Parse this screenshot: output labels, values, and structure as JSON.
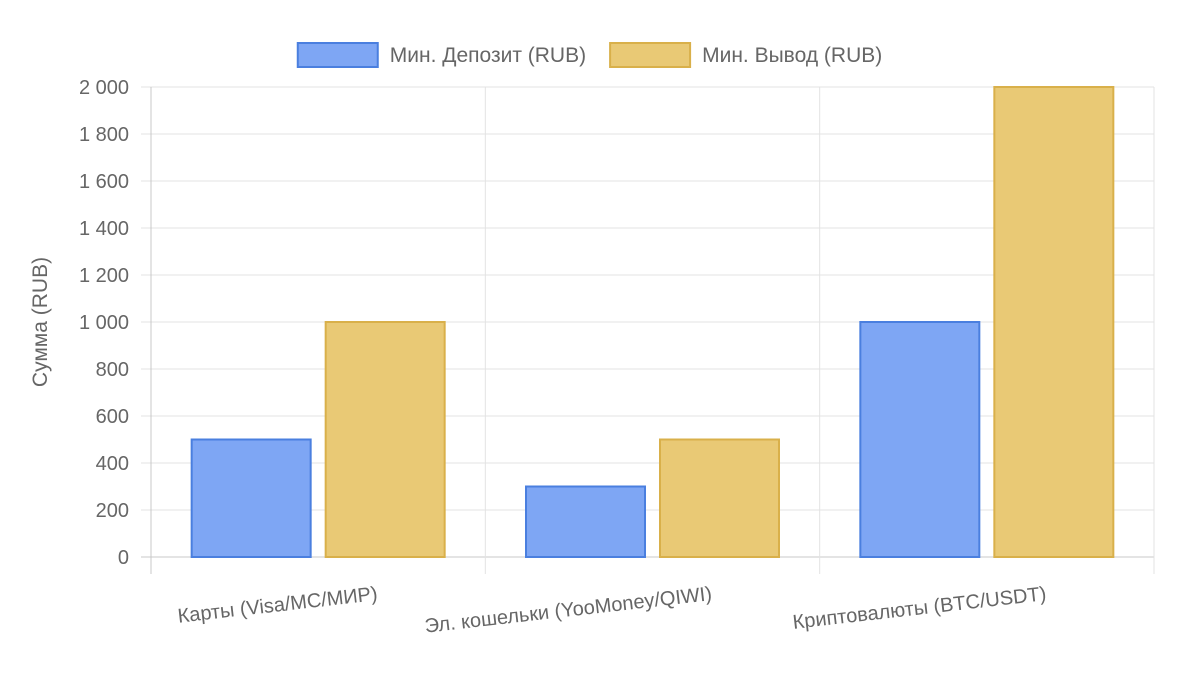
{
  "chart_data": {
    "type": "bar",
    "categories": [
      "Карты (Visa/MC/МИР)",
      "Эл. кошельки (YooMoney/QIWI)",
      "Криптовалюты (BTC/USDT)"
    ],
    "series": [
      {
        "name": "Мин. Депозит (RUB)",
        "values": [
          500,
          300,
          1000
        ],
        "fill": "#7ea6f4",
        "stroke": "#4a7fdf"
      },
      {
        "name": "Мин. Вывод (RUB)",
        "values": [
          1000,
          500,
          2000
        ],
        "fill": "#e9c975",
        "stroke": "#d9b04a"
      }
    ],
    "yticks": [
      "2 000",
      "1 800",
      "1 600",
      "1 400",
      "1 200",
      "1 000",
      "800",
      "600",
      "400",
      "200",
      "0"
    ],
    "ylabel": "Сумма (RUB)",
    "xlabel": "",
    "ylim": [
      0,
      2000
    ],
    "legend": "top-center",
    "grid": true,
    "colors": {
      "grid": "#e3e3e3",
      "axis": "#c8c8c8",
      "text": "#666666"
    }
  }
}
